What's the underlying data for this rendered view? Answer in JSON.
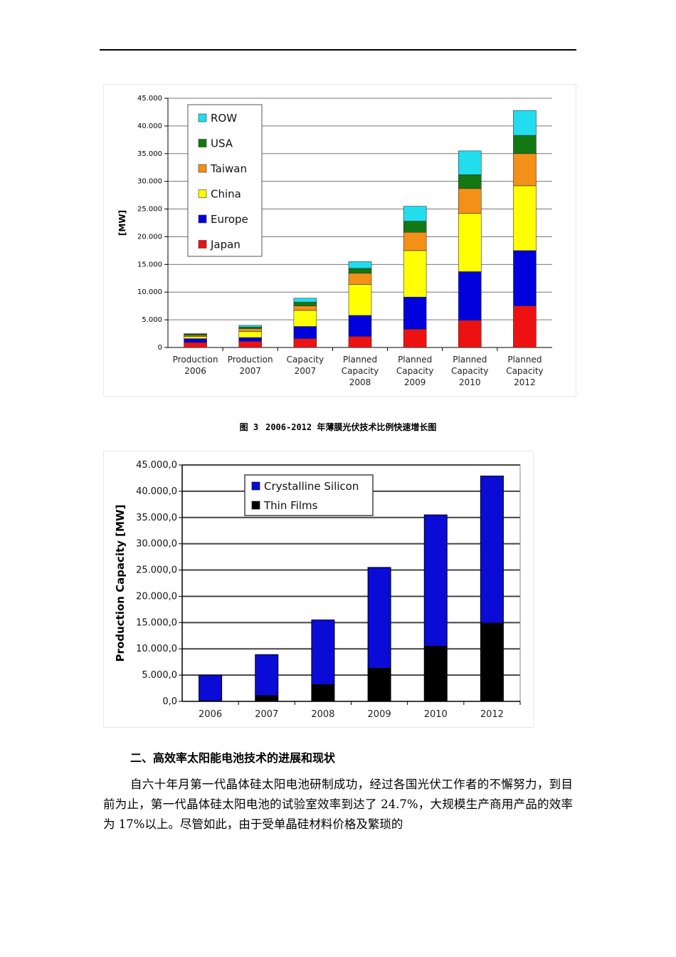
{
  "caption": {
    "figure_no": "图 3",
    "text": "2006-2012 年薄膜光伏技术比例快速增长图"
  },
  "section": {
    "heading": "二、高效率太阳能电池技术的进展和现状"
  },
  "paragraph": "自六十年月第一代晶体硅太阳电池研制成功，经过各国光伏工作者的不懈努力，到目前为止，第一代晶体硅太阳电池的试验室效率到达了 24.7%，大规模生产商用产品的效率为 17%以上。尽管如此，由于受单晶硅材料价格及繁琐的",
  "colors": {
    "Japan": "#ee1111",
    "Europe": "#0000dd",
    "China": "#ffff00",
    "Taiwan": "#f39018",
    "USA": "#137713",
    "ROW": "#22ddee",
    "crystalline": "#0b0bd8",
    "thin": "#000000"
  },
  "chart_data": [
    {
      "type": "bar",
      "stacked": true,
      "ylabel": "[MW]",
      "ylim": [
        0,
        45000
      ],
      "yticks": [
        "0",
        "5.000",
        "10.000",
        "15.000",
        "20.000",
        "25.000",
        "30.000",
        "35.000",
        "40.000",
        "45.000"
      ],
      "ytick_values": [
        0,
        5000,
        10000,
        15000,
        20000,
        25000,
        30000,
        35000,
        40000,
        45000
      ],
      "categories": [
        [
          "Production",
          "2006"
        ],
        [
          "Production",
          "2007"
        ],
        [
          "Capacity",
          "2007"
        ],
        [
          "Planned",
          "Capacity",
          "2008"
        ],
        [
          "Planned",
          "Capacity",
          "2009"
        ],
        [
          "Planned",
          "Capacity",
          "2010"
        ],
        [
          "Planned",
          "Capacity",
          "2012"
        ]
      ],
      "legend": [
        "ROW",
        "USA",
        "Taiwan",
        "China",
        "Europe",
        "Japan"
      ],
      "series": [
        {
          "name": "Japan",
          "values": [
            900,
            1100,
            1600,
            2000,
            3300,
            4900,
            7500
          ]
        },
        {
          "name": "Europe",
          "values": [
            700,
            700,
            2200,
            3800,
            5800,
            8800,
            10000
          ]
        },
        {
          "name": "China",
          "values": [
            400,
            1100,
            2900,
            5600,
            8400,
            10500,
            11700
          ]
        },
        {
          "name": "Taiwan",
          "values": [
            200,
            500,
            800,
            2000,
            3300,
            4500,
            5800
          ]
        },
        {
          "name": "USA",
          "values": [
            200,
            300,
            700,
            900,
            2000,
            2500,
            3300
          ]
        },
        {
          "name": "ROW",
          "values": [
            100,
            300,
            700,
            1200,
            2700,
            4300,
            4500
          ]
        }
      ]
    },
    {
      "type": "bar",
      "stacked": true,
      "ylabel": "Production Capacity [MW]",
      "ylim": [
        0,
        45000
      ],
      "yticks": [
        "0,0",
        "5.000,0",
        "10.000,0",
        "15.000,0",
        "20.000,0",
        "25.000,0",
        "30.000,0",
        "35.000,0",
        "40.000,0",
        "45.000,0"
      ],
      "ytick_values": [
        0,
        5000,
        10000,
        15000,
        20000,
        25000,
        30000,
        35000,
        40000,
        45000
      ],
      "categories": [
        "2006",
        "2007",
        "2008",
        "2009",
        "2010",
        "2012"
      ],
      "legend": [
        "Crystalline Silicon",
        "Thin Films"
      ],
      "series": [
        {
          "name": "Thin Films",
          "values": [
            100,
            1100,
            3200,
            6300,
            10500,
            14900
          ]
        },
        {
          "name": "Crystalline Silicon",
          "values": [
            4900,
            7800,
            12300,
            19200,
            25000,
            28000
          ]
        }
      ]
    }
  ]
}
